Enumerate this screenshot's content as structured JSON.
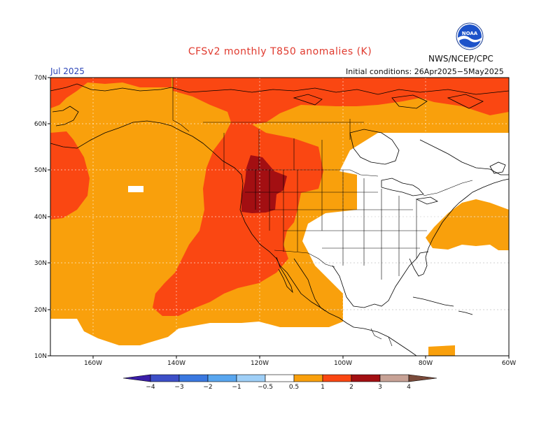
{
  "title": "CFSv2 monthly T850 anomalies (K)",
  "agency": "NWS/NCEP/CPC",
  "logo_text": "NOAA",
  "month": "Jul 2025",
  "initial_conditions": "Initial conditions: 26Apr2025−5May2025",
  "lat_labels": [
    "70N",
    "60N",
    "50N",
    "40N",
    "30N",
    "20N",
    "10N"
  ],
  "lon_labels": [
    "160W",
    "140W",
    "120W",
    "100W",
    "80W",
    "60W"
  ],
  "colorbar": {
    "labels": [
      "−4",
      "−3",
      "−2",
      "−1",
      "−0.5",
      "0.5",
      "1",
      "2",
      "3",
      "4"
    ],
    "colors": [
      "#3a1ea8",
      "#3d4fc7",
      "#3a78e0",
      "#58a6ef",
      "#9fcff7",
      "#ffffff",
      "#f9a00c",
      "#fa4712",
      "#a30f12",
      "#c7a296",
      "#7a4a3a"
    ]
  },
  "colors": {
    "anom_0_5_1": "#f9a00c",
    "anom_1_2": "#fa4712",
    "anom_2_3": "#a30f12",
    "background": "#ffffff",
    "title": "#e03a2e",
    "month": "#2b45b8"
  }
}
